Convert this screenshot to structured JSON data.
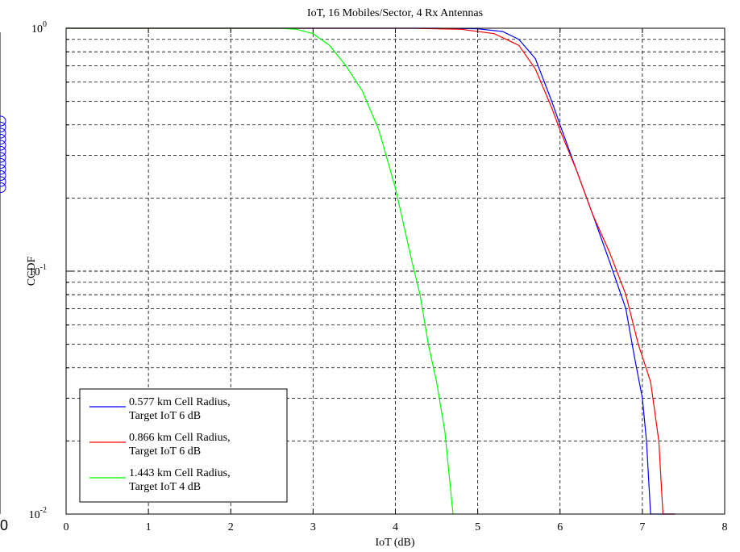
{
  "chart_data": {
    "type": "line",
    "title": "IoT, 16 Mobiles/Sector, 4 Rx Antennas",
    "xlabel": "IoT (dB)",
    "ylabel": "CCDF",
    "xlim": [
      0,
      8
    ],
    "ylim": [
      0.01,
      1
    ],
    "yscale": "log",
    "grid": true,
    "legend_position": "bottom-left",
    "x_ticks": [
      "0",
      "1",
      "2",
      "3",
      "4",
      "5",
      "6",
      "7",
      "8"
    ],
    "y_ticks": [
      {
        "base": "10",
        "exp": "0",
        "value": 1
      },
      {
        "base": "10",
        "exp": "-1",
        "value": 0.1
      },
      {
        "base": "10",
        "exp": "-2",
        "value": 0.01
      }
    ],
    "series": [
      {
        "name": "0.577 km Cell Radius, Target IoT 6 dB",
        "name_lines": [
          "0.577 km Cell Radius,",
          "Target IoT 6 dB"
        ],
        "color": "#0000ff",
        "points": [
          [
            0,
            1
          ],
          [
            4.5,
            1
          ],
          [
            5.0,
            0.995
          ],
          [
            5.3,
            0.97
          ],
          [
            5.5,
            0.9
          ],
          [
            5.7,
            0.75
          ],
          [
            5.9,
            0.5
          ],
          [
            6.0,
            0.4
          ],
          [
            6.2,
            0.26
          ],
          [
            6.4,
            0.17
          ],
          [
            6.6,
            0.11
          ],
          [
            6.8,
            0.07
          ],
          [
            6.9,
            0.045
          ],
          [
            7.0,
            0.03
          ],
          [
            7.05,
            0.02
          ],
          [
            7.1,
            0.01
          ],
          [
            7.2,
            0.01
          ],
          [
            7.4,
            0.01
          ]
        ]
      },
      {
        "name": "0.866 km Cell Radius, Target IoT 6 dB",
        "name_lines": [
          "0.866 km Cell Radius,",
          "Target IoT 6 dB"
        ],
        "color": "#ff0000",
        "points": [
          [
            0,
            1
          ],
          [
            4.2,
            1
          ],
          [
            4.8,
            0.99
          ],
          [
            5.2,
            0.95
          ],
          [
            5.5,
            0.85
          ],
          [
            5.7,
            0.68
          ],
          [
            5.9,
            0.47
          ],
          [
            6.0,
            0.38
          ],
          [
            6.2,
            0.26
          ],
          [
            6.4,
            0.17
          ],
          [
            6.6,
            0.12
          ],
          [
            6.8,
            0.08
          ],
          [
            6.95,
            0.05
          ],
          [
            7.1,
            0.035
          ],
          [
            7.2,
            0.02
          ],
          [
            7.25,
            0.01
          ],
          [
            7.4,
            0.01
          ]
        ]
      },
      {
        "name": "1.443 km Cell Radius, Target IoT 4 dB",
        "name_lines": [
          "1.443 km Cell Radius,",
          "Target IoT 4 dB"
        ],
        "color": "#00ff00",
        "points": [
          [
            0,
            1
          ],
          [
            2.6,
            1
          ],
          [
            2.8,
            0.99
          ],
          [
            3.0,
            0.95
          ],
          [
            3.2,
            0.85
          ],
          [
            3.4,
            0.7
          ],
          [
            3.6,
            0.55
          ],
          [
            3.8,
            0.38
          ],
          [
            4.0,
            0.22
          ],
          [
            4.2,
            0.11
          ],
          [
            4.3,
            0.08
          ],
          [
            4.4,
            0.05
          ],
          [
            4.5,
            0.035
          ],
          [
            4.6,
            0.022
          ],
          [
            4.7,
            0.01
          ]
        ]
      }
    ]
  },
  "clipped_left_label": "0"
}
